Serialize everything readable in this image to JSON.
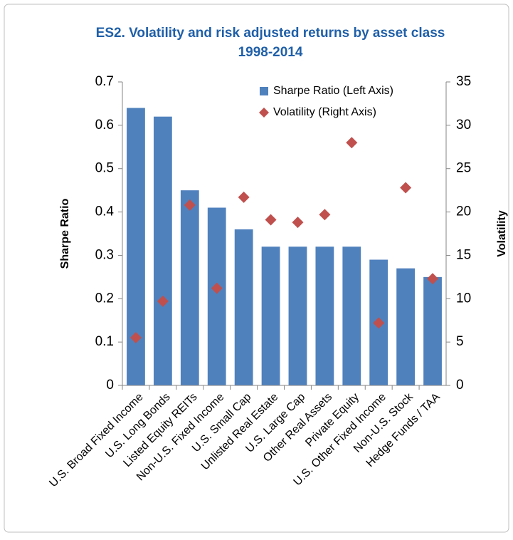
{
  "chart_data": {
    "type": "bar",
    "title": [
      "ES2. Volatility and risk adjusted returns by asset class",
      "1998-2014"
    ],
    "categories": [
      "U.S. Broad Fixed Income",
      "U.S. Long Bonds",
      "Listed Equity REITs",
      "Non-U.S. Fixed Income",
      "U.S. Small Cap",
      "Unlisted Real Estate",
      "U.S. Large Cap",
      "Other Real Assets",
      "Private Equity",
      "U.S. Other Fixed Income",
      "Non-U.S. Stock",
      "Hedge Funds / TAA"
    ],
    "series": [
      {
        "name": "Sharpe Ratio (Left Axis)",
        "type": "bar",
        "color": "#4f81bd",
        "values": [
          0.64,
          0.62,
          0.45,
          0.41,
          0.36,
          0.32,
          0.32,
          0.32,
          0.32,
          0.29,
          0.27,
          0.25
        ]
      },
      {
        "name": "Volatility (Right Axis)",
        "type": "scatter",
        "axis": "y2",
        "color": "#c0504d",
        "values": [
          5.5,
          9.7,
          20.8,
          11.2,
          21.7,
          19.1,
          18.8,
          19.7,
          28.0,
          7.2,
          22.8,
          12.3
        ]
      }
    ],
    "y_label": "Sharpe Ratio",
    "y2_label": "Volatility",
    "ylim": [
      0,
      0.7
    ],
    "yticks": [
      0,
      0.1,
      0.2,
      0.3,
      0.4,
      0.5,
      0.6,
      0.7
    ],
    "y2lim": [
      0,
      35
    ],
    "y2ticks": [
      0,
      5,
      10,
      15,
      20,
      25,
      30,
      35
    ],
    "grid": false,
    "legend": "top-right"
  }
}
